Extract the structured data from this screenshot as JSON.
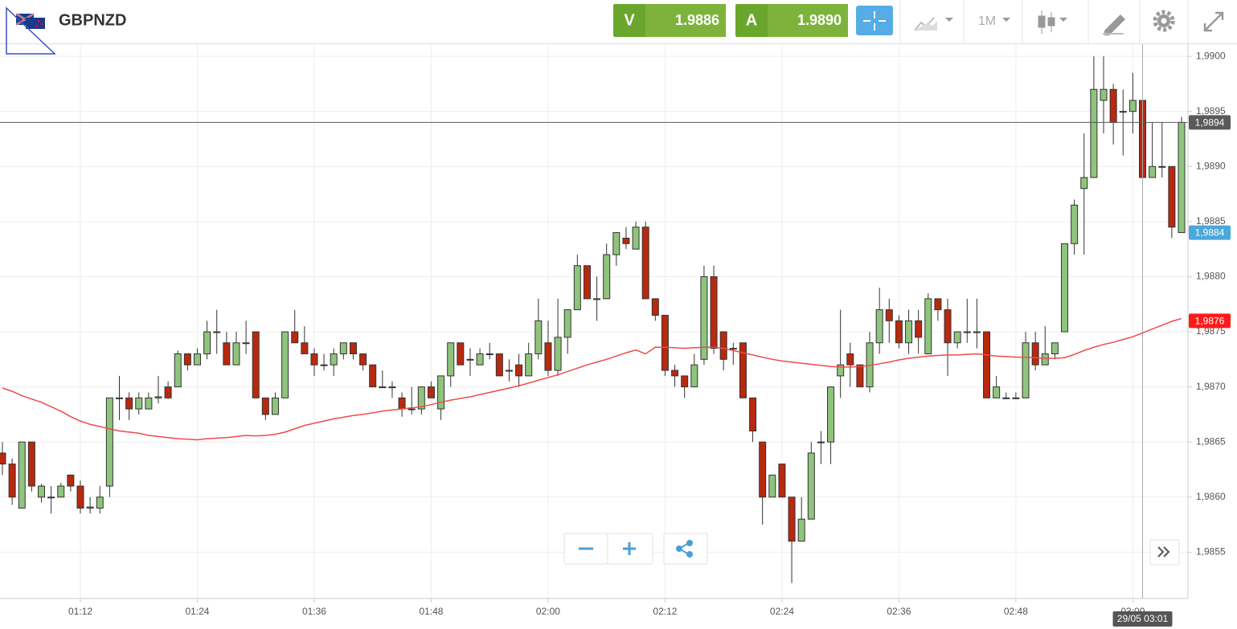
{
  "header": {
    "symbol": "GBPNZD",
    "sell_label": "V",
    "sell_price": "1.9886",
    "buy_label": "A",
    "buy_price": "1.9890",
    "timeframe": "1M"
  },
  "chart_data": {
    "type": "candlestick",
    "x": [
      "01:04",
      "01:05",
      "01:06",
      "01:07",
      "01:08",
      "01:09",
      "01:10",
      "01:11",
      "01:12",
      "01:13",
      "01:14",
      "01:15",
      "01:16",
      "01:17",
      "01:18",
      "01:19",
      "01:20",
      "01:21",
      "01:22",
      "01:23",
      "01:24",
      "01:25",
      "01:26",
      "01:27",
      "01:28",
      "01:29",
      "01:30",
      "01:31",
      "01:32",
      "01:33",
      "01:34",
      "01:35",
      "01:36",
      "01:37",
      "01:38",
      "01:39",
      "01:40",
      "01:41",
      "01:42",
      "01:43",
      "01:44",
      "01:45",
      "01:46",
      "01:47",
      "01:48",
      "01:49",
      "01:50",
      "01:51",
      "01:52",
      "01:53",
      "01:54",
      "01:55",
      "01:56",
      "01:57",
      "01:58",
      "01:59",
      "02:00",
      "02:01",
      "02:02",
      "02:03",
      "02:04",
      "02:05",
      "02:06",
      "02:07",
      "02:08",
      "02:09",
      "02:10",
      "02:11",
      "02:12",
      "02:13",
      "02:14",
      "02:15",
      "02:16",
      "02:17",
      "02:18",
      "02:19",
      "02:20",
      "02:21",
      "02:22",
      "02:23",
      "02:24",
      "02:25",
      "02:26",
      "02:27",
      "02:28",
      "02:29",
      "02:30",
      "02:31",
      "02:32",
      "02:33",
      "02:34",
      "02:35",
      "02:36",
      "02:37",
      "02:38",
      "02:39",
      "02:40",
      "02:41",
      "02:42",
      "02:43",
      "02:44",
      "02:45",
      "02:46",
      "02:47",
      "02:48",
      "02:49",
      "02:50",
      "02:51",
      "02:52",
      "02:53",
      "02:54",
      "02:55",
      "02:56",
      "02:57",
      "02:58",
      "02:59",
      "03:00",
      "03:01",
      "03:02",
      "03:03",
      "03:04",
      "03:05"
    ],
    "open": [
      1.9864,
      1.9863,
      1.9859,
      1.9865,
      1.986,
      1.986,
      1.986,
      1.9862,
      1.9861,
      1.9859,
      1.9859,
      1.9861,
      1.9869,
      1.9869,
      1.9868,
      1.9868,
      1.9869,
      1.987,
      1.987,
      1.9873,
      1.9872,
      1.9873,
      1.9875,
      1.9874,
      1.9872,
      1.9874,
      1.9875,
      1.9869,
      1.98675,
      1.9869,
      1.9875,
      1.9874,
      1.9873,
      1.9872,
      1.9872,
      1.9873,
      1.9874,
      1.9873,
      1.9872,
      1.987,
      1.987,
      1.9869,
      1.9868,
      1.9868,
      1.987,
      1.9868,
      1.9871,
      1.9874,
      1.98725,
      1.9872,
      1.9873,
      1.9873,
      1.98715,
      1.9872,
      1.9871,
      1.9873,
      1.9874,
      1.98715,
      1.98745,
      1.9877,
      1.9881,
      1.9878,
      1.9878,
      1.9882,
      1.98835,
      1.98825,
      1.98845,
      1.9878,
      1.98765,
      1.98715,
      1.9871,
      1.987,
      1.98725,
      1.988,
      1.9875,
      1.98735,
      1.9874,
      1.9869,
      1.9865,
      1.986,
      1.9863,
      1.986,
      1.9856,
      1.9858,
      1.9865,
      1.9865,
      1.9871,
      1.9873,
      1.9872,
      1.987,
      1.9874,
      1.9877,
      1.9876,
      1.9874,
      1.9876,
      1.9873,
      1.9878,
      1.9877,
      1.9874,
      1.9875,
      1.9875,
      1.9875,
      1.9869,
      1.9869,
      1.9869,
      1.9869,
      1.9874,
      1.9872,
      1.9873,
      1.9875,
      1.9883,
      1.9888,
      1.9889,
      1.9896,
      1.9897,
      1.9895,
      1.9895,
      1.9896,
      1.9889,
      1.989,
      1.989,
      1.9884
    ],
    "high": [
      1.9865,
      1.98635,
      1.9865,
      1.9865,
      1.98612,
      1.9861,
      1.98613,
      1.9862,
      1.98615,
      1.986,
      1.9861,
      1.9869,
      1.9871,
      1.98695,
      1.98695,
      1.98695,
      1.9871,
      1.98705,
      1.98733,
      1.9873,
      1.98735,
      1.9876,
      1.9877,
      1.9875,
      1.9875,
      1.9876,
      1.9875,
      1.9869,
      1.98695,
      1.9875,
      1.9877,
      1.98755,
      1.98735,
      1.9873,
      1.98735,
      1.9874,
      1.9874,
      1.9873,
      1.9872,
      1.98715,
      1.98705,
      1.98695,
      1.987,
      1.987,
      1.98705,
      1.9871,
      1.9874,
      1.9874,
      1.98735,
      1.98735,
      1.9874,
      1.9873,
      1.98725,
      1.9873,
      1.9874,
      1.9878,
      1.9876,
      1.9878,
      1.9877,
      1.9882,
      1.9881,
      1.988,
      1.9883,
      1.9884,
      1.98845,
      1.9885,
      1.9885,
      1.9878,
      1.98765,
      1.9872,
      1.9871,
      1.9873,
      1.9881,
      1.9881,
      1.9875,
      1.9874,
      1.9874,
      1.9869,
      1.9865,
      1.9862,
      1.9863,
      1.986,
      1.986,
      1.9865,
      1.9866,
      1.987,
      1.9877,
      1.9874,
      1.9872,
      1.9875,
      1.9879,
      1.9878,
      1.98765,
      1.9877,
      1.9877,
      1.98785,
      1.9878,
      1.9878,
      1.9875,
      1.9878,
      1.9878,
      1.9875,
      1.9871,
      1.98695,
      1.98695,
      1.9875,
      1.9875,
      1.98755,
      1.9874,
      1.9883,
      1.9887,
      1.9893,
      1.99,
      1.99,
      1.98975,
      1.9897,
      1.98985,
      1.9896,
      1.9894,
      1.9894,
      1.989,
      1.98945
    ],
    "low": [
      1.9862,
      1.98593,
      1.9859,
      1.98605,
      1.98595,
      1.98585,
      1.986,
      1.98605,
      1.98585,
      1.98585,
      1.98585,
      1.986,
      1.9867,
      1.9867,
      1.98675,
      1.9868,
      1.98685,
      1.98689,
      1.987,
      1.98715,
      1.9872,
      1.98725,
      1.9873,
      1.9872,
      1.9872,
      1.9873,
      1.9869,
      1.9867,
      1.98675,
      1.9869,
      1.9874,
      1.9873,
      1.9871,
      1.98715,
      1.9871,
      1.98725,
      1.98725,
      1.98715,
      1.987,
      1.987,
      1.9869,
      1.98673,
      1.98675,
      1.98675,
      1.9869,
      1.9867,
      1.987,
      1.9872,
      1.9871,
      1.9872,
      1.98725,
      1.9871,
      1.98705,
      1.987,
      1.9871,
      1.98725,
      1.9871,
      1.9871,
      1.9873,
      1.9877,
      1.9878,
      1.9876,
      1.9878,
      1.9881,
      1.98825,
      1.98825,
      1.9878,
      1.9876,
      1.9871,
      1.987,
      1.9869,
      1.987,
      1.9872,
      1.9873,
      1.98715,
      1.9872,
      1.9869,
      1.9865,
      1.98575,
      1.986,
      1.986,
      1.98522,
      1.9856,
      1.9858,
      1.9863,
      1.9863,
      1.9869,
      1.987,
      1.987,
      1.98695,
      1.9873,
      1.9874,
      1.98735,
      1.9873,
      1.9873,
      1.9873,
      1.9876,
      1.9871,
      1.98735,
      1.9874,
      1.98735,
      1.9869,
      1.9869,
      1.9869,
      1.9869,
      1.9869,
      1.98715,
      1.9872,
      1.98725,
      1.9875,
      1.9882,
      1.9882,
      1.9889,
      1.9893,
      1.9892,
      1.9891,
      1.9893,
      1.98885,
      1.9889,
      1.9889,
      1.98835,
      1.9884
    ],
    "close": [
      1.9863,
      1.986,
      1.9865,
      1.9861,
      1.9861,
      1.986,
      1.9861,
      1.9861,
      1.9859,
      1.98591,
      1.986,
      1.9869,
      1.9869,
      1.9868,
      1.9869,
      1.9869,
      1.98691,
      1.9869,
      1.9873,
      1.9872,
      1.9873,
      1.9875,
      1.9875,
      1.9872,
      1.9874,
      1.9874,
      1.9869,
      1.98675,
      1.9869,
      1.9875,
      1.9874,
      1.9873,
      1.9872,
      1.9872,
      1.9873,
      1.9874,
      1.9873,
      1.9872,
      1.987,
      1.987,
      1.987,
      1.9868,
      1.9868,
      1.987,
      1.9869,
      1.9871,
      1.9874,
      1.9872,
      1.98725,
      1.9873,
      1.9873,
      1.9871,
      1.98715,
      1.9871,
      1.9873,
      1.9876,
      1.98715,
      1.98745,
      1.9877,
      1.9881,
      1.9878,
      1.9878,
      1.9882,
      1.9884,
      1.9883,
      1.98845,
      1.9878,
      1.98765,
      1.98715,
      1.9871,
      1.987,
      1.9872,
      1.988,
      1.98735,
      1.98725,
      1.98735,
      1.9869,
      1.9866,
      1.986,
      1.9862,
      1.986,
      1.9856,
      1.9858,
      1.9864,
      1.9865,
      1.987,
      1.9872,
      1.9872,
      1.987,
      1.9874,
      1.9877,
      1.9876,
      1.9874,
      1.9876,
      1.98745,
      1.9878,
      1.9877,
      1.9874,
      1.9875,
      1.9875,
      1.9875,
      1.9869,
      1.987,
      1.9869,
      1.9869,
      1.9874,
      1.9872,
      1.9873,
      1.9874,
      1.9883,
      1.98865,
      1.9889,
      1.9897,
      1.9897,
      1.9894,
      1.9895,
      1.9896,
      1.9889,
      1.989,
      1.989,
      1.98845,
      1.9894
    ],
    "up_color": "#8fc47d",
    "down_color": "#b8290f",
    "moving_average": {
      "color": "#f04a4a",
      "values": [
        1.98699,
        1.98696,
        1.98692,
        1.98689,
        1.98686,
        1.98682,
        1.98678,
        1.98673,
        1.98669,
        1.98666,
        1.98664,
        1.98662,
        1.9866,
        1.98659,
        1.98658,
        1.98656,
        1.98655,
        1.98654,
        1.98653,
        1.986525,
        1.98652,
        1.98653,
        1.986535,
        1.98654,
        1.98655,
        1.98656,
        1.986555,
        1.98656,
        1.98657,
        1.98659,
        1.98662,
        1.98665,
        1.98667,
        1.98669,
        1.98671,
        1.986725,
        1.98674,
        1.98675,
        1.986765,
        1.98678,
        1.98679,
        1.9868,
        1.98681,
        1.98682,
        1.98684,
        1.98686,
        1.98688,
        1.986895,
        1.98691,
        1.98693,
        1.98695,
        1.98697,
        1.98699,
        1.98701,
        1.987035,
        1.98706,
        1.987085,
        1.98711,
        1.98714,
        1.98717,
        1.9872,
        1.987225,
        1.98725,
        1.98728,
        1.98731,
        1.987335,
        1.9873,
        1.98736,
        1.98736,
        1.987355,
        1.98735,
        1.987355,
        1.98736,
        1.98736,
        1.98735,
        1.98733,
        1.98731,
        1.98729,
        1.98727,
        1.98725,
        1.987235,
        1.987225,
        1.987215,
        1.987205,
        1.987195,
        1.987185,
        1.98718,
        1.98718,
        1.987185,
        1.987195,
        1.98721,
        1.987225,
        1.987245,
        1.98726,
        1.98727,
        1.98728,
        1.987285,
        1.98729,
        1.98729,
        1.987295,
        1.9873,
        1.98729,
        1.98728,
        1.987275,
        1.98727,
        1.98727,
        1.987265,
        1.98726,
        1.98726,
        1.987265,
        1.987295,
        1.98733,
        1.98736,
        1.987385,
        1.987405,
        1.98743,
        1.987455,
        1.98749,
        1.987525,
        1.98756,
        1.987595,
        1.98762
      ]
    },
    "xlim": [
      "01:04",
      "03:05"
    ],
    "xticks": [
      "01:12",
      "01:24",
      "01:36",
      "01:48",
      "02:00",
      "02:12",
      "02:24",
      "02:36",
      "02:48",
      "03:00"
    ],
    "ylim": [
      1.98508,
      1.99011
    ],
    "yticks": [
      {
        "value": 1.9855,
        "label": "1,9855"
      },
      {
        "value": 1.986,
        "label": "1,9860"
      },
      {
        "value": 1.9865,
        "label": "1,9865"
      },
      {
        "value": 1.987,
        "label": "1,9870"
      },
      {
        "value": 1.9875,
        "label": "1,9875"
      },
      {
        "value": 1.988,
        "label": "1,9880"
      },
      {
        "value": 1.9885,
        "label": "1,9885"
      },
      {
        "value": 1.989,
        "label": "1,9890"
      },
      {
        "value": 1.9895,
        "label": "1,9895"
      },
      {
        "value": 1.99,
        "label": "1,9900"
      }
    ],
    "grid": true,
    "price_markers": [
      {
        "value": 1.9894,
        "label": "1,9894",
        "color": "#5a5a5a",
        "line": true
      },
      {
        "value": 1.9884,
        "label": "1,9884",
        "color": "#4aa8dc",
        "line": false
      },
      {
        "value": 1.9876,
        "label": "1,9876",
        "color": "#ff1a1a",
        "line": false
      }
    ],
    "crosshair": {
      "x": "03:01",
      "label": "29/05 03:01"
    }
  }
}
